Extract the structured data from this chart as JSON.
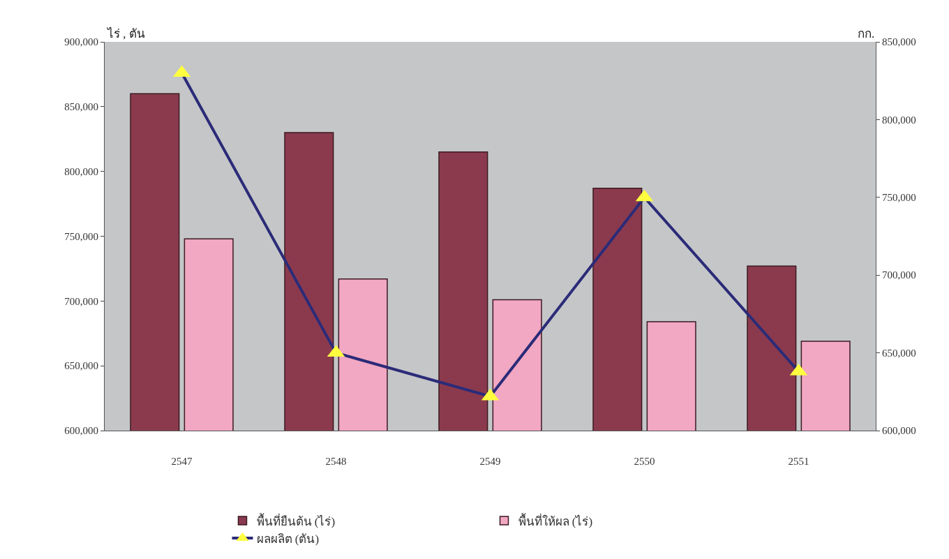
{
  "chart_data": {
    "type": "bar",
    "ylabel": "ไร่ , ตัน",
    "y2label": "กก.",
    "categories": [
      "2547",
      "2548",
      "2549",
      "2550",
      "2551"
    ],
    "series": [
      {
        "name": "พื้นที่ยืนต้น (ไร่)",
        "color": "#8b3a4e",
        "values": [
          860000,
          830000,
          815000,
          787000,
          727000
        ]
      },
      {
        "name": "พื้นที่ให้ผล (ไร่)",
        "color": "#f2a7c3",
        "values": [
          748000,
          717000,
          701000,
          684000,
          669000
        ]
      },
      {
        "name": "ผลผลิต (ตัน)",
        "type": "line",
        "axis": "y2",
        "color": "#2b2b78",
        "marker": "triangle",
        "values": [
          830000,
          650000,
          622000,
          750000,
          638000
        ]
      }
    ],
    "ylim": [
      600000,
      900000
    ],
    "yticks": [
      {
        "value": 600000,
        "label": "600,000"
      },
      {
        "value": 650000,
        "label": "650,000"
      },
      {
        "value": 700000,
        "label": "700,000"
      },
      {
        "value": 750000,
        "label": "750,000"
      },
      {
        "value": 800000,
        "label": "800,000"
      },
      {
        "value": 850000,
        "label": "850,000"
      },
      {
        "value": 900000,
        "label": "900,000"
      }
    ],
    "y2lim": [
      600000,
      850000
    ],
    "y2ticks": [
      {
        "value": 600000,
        "label": "600,000"
      },
      {
        "value": 650000,
        "label": "650,000"
      },
      {
        "value": 700000,
        "label": "700,000"
      },
      {
        "value": 750000,
        "label": "750,000"
      },
      {
        "value": 800000,
        "label": "800,000"
      },
      {
        "value": 850000,
        "label": "850,000"
      }
    ],
    "grid": false,
    "legend": "bottom"
  }
}
